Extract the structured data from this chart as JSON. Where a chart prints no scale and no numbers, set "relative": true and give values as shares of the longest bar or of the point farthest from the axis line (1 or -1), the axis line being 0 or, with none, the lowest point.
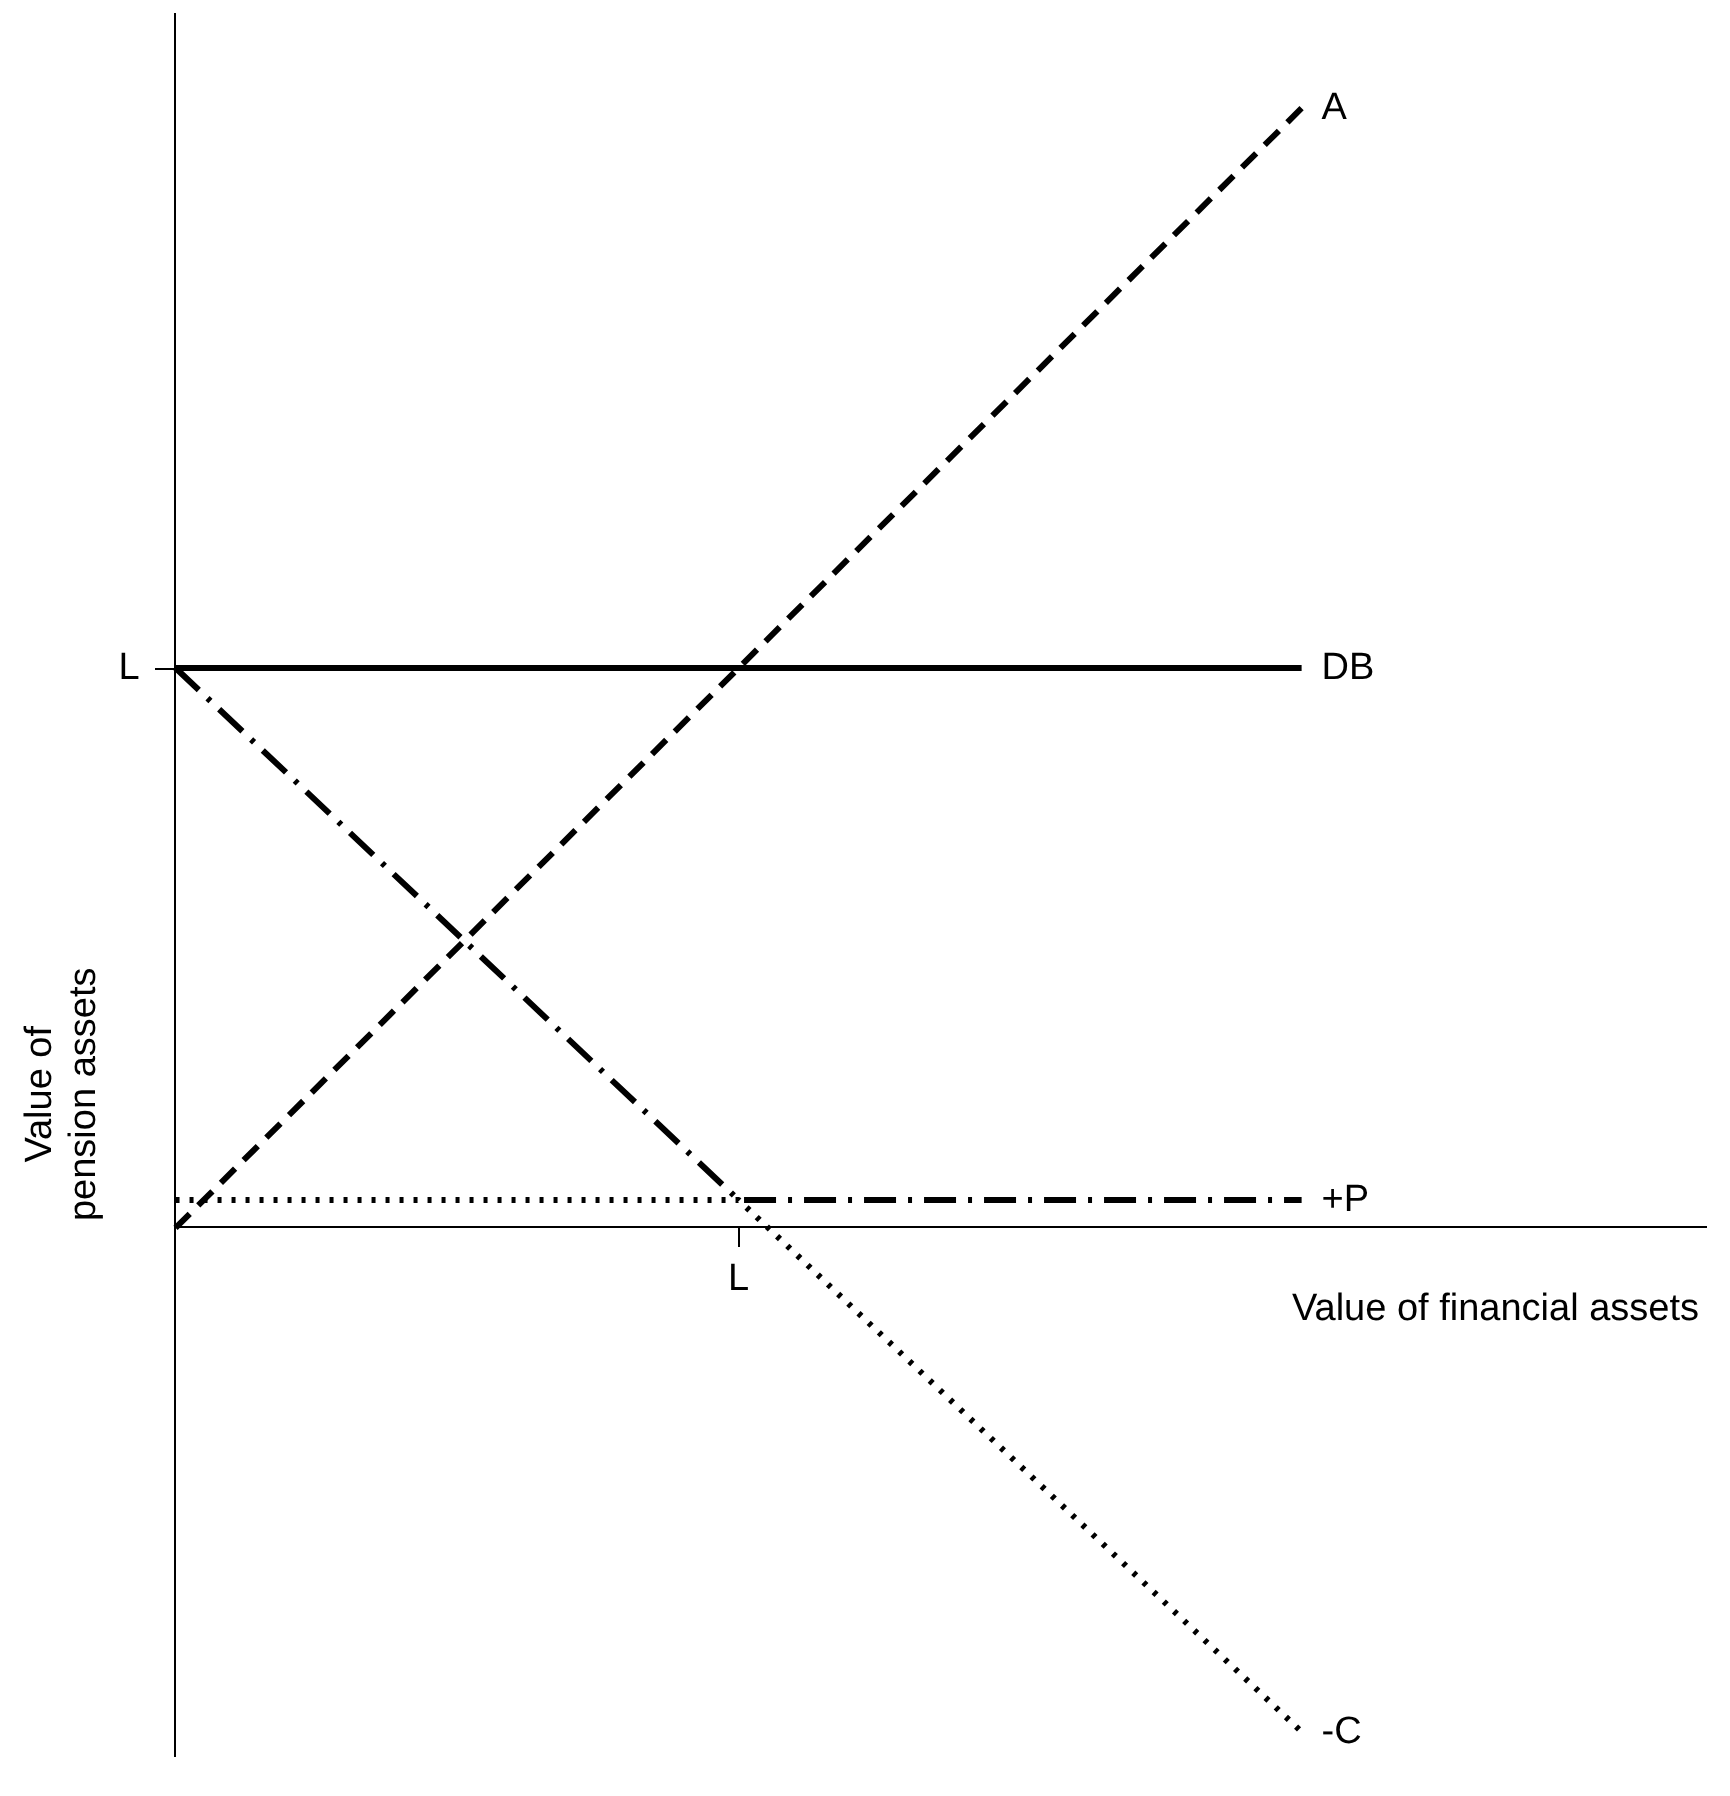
{
  "chart_data": {
    "type": "line",
    "relative": true,
    "xlabel": "Value of financial assets",
    "ylabel": "Value of\npension assets",
    "categories": [
      null,
      null,
      null
    ],
    "annotations": [
      "L",
      "L"
    ],
    "series": [
      {
        "name": "A",
        "color": "#000000",
        "line_style": "dashed",
        "values": [
          0,
          0.5,
          1.0
        ]
      },
      {
        "name": "DB",
        "color": "#000000",
        "line_style": "solid",
        "values": [
          0.5,
          0.5,
          0.5
        ]
      },
      {
        "name": "+P",
        "color": "#000000",
        "line_style": "dashdot",
        "values": [
          0.5,
          0.025,
          0.025
        ]
      },
      {
        "name": "-C",
        "color": "#000000",
        "line_style": "dotted",
        "values": [
          0.025,
          0.025,
          -0.45
        ]
      }
    ]
  }
}
